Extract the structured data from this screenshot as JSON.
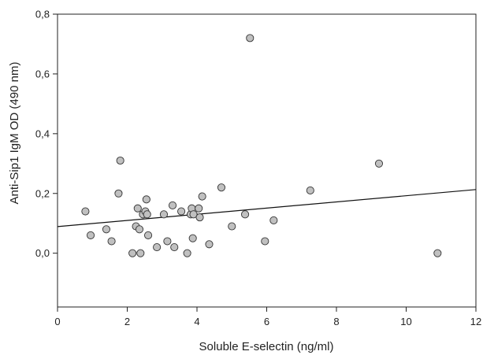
{
  "chart_data": {
    "type": "scatter",
    "xlabel": "Soluble E-selectin (ng/ml)",
    "ylabel": "Anti-Sip1 IgM OD (490 nm)",
    "xlim": [
      0,
      12
    ],
    "ylim": [
      -0.18,
      0.8
    ],
    "x_ticks": [
      0,
      2,
      4,
      6,
      8,
      10,
      12
    ],
    "x_tick_labels": [
      "0",
      "2",
      "4",
      "6",
      "8",
      "10",
      "12"
    ],
    "y_ticks": [
      0.0,
      0.2,
      0.4,
      0.6,
      0.8
    ],
    "y_tick_labels": [
      "0,0",
      "0,2",
      "0,4",
      "0,6",
      "0,8"
    ],
    "grid": false,
    "marker_fill": "#c0c0c0",
    "marker_stroke": "#333333",
    "points": [
      {
        "x": 0.8,
        "y": 0.14
      },
      {
        "x": 0.95,
        "y": 0.06
      },
      {
        "x": 1.4,
        "y": 0.08
      },
      {
        "x": 1.55,
        "y": 0.04
      },
      {
        "x": 1.75,
        "y": 0.2
      },
      {
        "x": 1.8,
        "y": 0.31
      },
      {
        "x": 2.15,
        "y": 0.0
      },
      {
        "x": 2.25,
        "y": 0.09
      },
      {
        "x": 2.3,
        "y": 0.15
      },
      {
        "x": 2.35,
        "y": 0.08
      },
      {
        "x": 2.38,
        "y": 0.0
      },
      {
        "x": 2.45,
        "y": 0.13
      },
      {
        "x": 2.52,
        "y": 0.14
      },
      {
        "x": 2.55,
        "y": 0.18
      },
      {
        "x": 2.57,
        "y": 0.13
      },
      {
        "x": 2.6,
        "y": 0.06
      },
      {
        "x": 2.85,
        "y": 0.02
      },
      {
        "x": 3.05,
        "y": 0.13
      },
      {
        "x": 3.15,
        "y": 0.04
      },
      {
        "x": 3.3,
        "y": 0.16
      },
      {
        "x": 3.35,
        "y": 0.02
      },
      {
        "x": 3.55,
        "y": 0.14
      },
      {
        "x": 3.72,
        "y": 0.0
      },
      {
        "x": 3.82,
        "y": 0.13
      },
      {
        "x": 3.85,
        "y": 0.15
      },
      {
        "x": 3.88,
        "y": 0.05
      },
      {
        "x": 3.9,
        "y": 0.13
      },
      {
        "x": 4.05,
        "y": 0.15
      },
      {
        "x": 4.08,
        "y": 0.12
      },
      {
        "x": 4.15,
        "y": 0.19
      },
      {
        "x": 4.35,
        "y": 0.03
      },
      {
        "x": 4.7,
        "y": 0.22
      },
      {
        "x": 5.0,
        "y": 0.09
      },
      {
        "x": 5.38,
        "y": 0.13
      },
      {
        "x": 5.52,
        "y": 0.72
      },
      {
        "x": 5.95,
        "y": 0.04
      },
      {
        "x": 6.2,
        "y": 0.11
      },
      {
        "x": 7.25,
        "y": 0.21
      },
      {
        "x": 9.22,
        "y": 0.3
      },
      {
        "x": 10.9,
        "y": 0.0
      }
    ],
    "trendline": {
      "x": [
        0,
        12
      ],
      "y": [
        0.089,
        0.213
      ]
    }
  }
}
